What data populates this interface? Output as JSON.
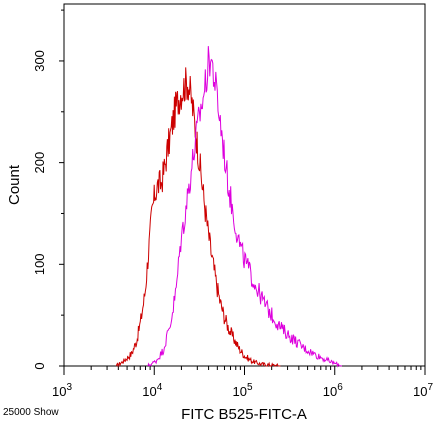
{
  "chart_data": {
    "type": "line",
    "title": "",
    "xlabel": "FITC B525-FITC-A",
    "ylabel": "Count",
    "x_scale": "log",
    "xlim": [
      1000,
      10000000
    ],
    "ylim": [
      0,
      356
    ],
    "x_ticks": [
      {
        "value": 1000,
        "base": "10",
        "exp": "3"
      },
      {
        "value": 10000,
        "base": "10",
        "exp": "4"
      },
      {
        "value": 100000,
        "base": "10",
        "exp": "5"
      },
      {
        "value": 1000000,
        "base": "10",
        "exp": "6"
      },
      {
        "value": 10000000,
        "base": "10",
        "exp": "7"
      }
    ],
    "y_ticks": [
      {
        "value": 0,
        "label": "0"
      },
      {
        "value": 100,
        "label": "100"
      },
      {
        "value": 200,
        "label": "200"
      },
      {
        "value": 300,
        "label": "300"
      }
    ],
    "grid": false,
    "legend": "none",
    "corner_note": "25000 Show",
    "series": [
      {
        "color": "#cc0000",
        "x": [
          3800,
          4600,
          5600,
          6400,
          7100,
          7900,
          8600,
          9400,
          10200,
          11000,
          12000,
          13000,
          14000,
          15200,
          16400,
          17800,
          19500,
          21500,
          23500,
          25500,
          27500,
          30000,
          33000,
          36000,
          39500,
          43000,
          48000,
          53000,
          59000,
          66000,
          75000,
          86000,
          100000,
          120000,
          150000,
          190000,
          250000
        ],
        "y": [
          0,
          5,
          12,
          25,
          45,
          72,
          110,
          150,
          170,
          178,
          180,
          195,
          212,
          228,
          245,
          258,
          268,
          275,
          280,
          265,
          245,
          218,
          188,
          160,
          132,
          110,
          85,
          65,
          50,
          38,
          28,
          18,
          10,
          5,
          2,
          1,
          0
        ]
      },
      {
        "color": "#dd00dd",
        "x": [
          8500,
          10500,
          12500,
          15000,
          17500,
          19500,
          22000,
          24500,
          27000,
          29500,
          32000,
          34500,
          37000,
          39500,
          42000,
          45000,
          49000,
          53000,
          58000,
          63000,
          69000,
          76000,
          84000,
          93000,
          105000,
          120000,
          140000,
          165000,
          200000,
          250000,
          330000,
          450000,
          650000,
          900000,
          1200000
        ],
        "y": [
          0,
          5,
          15,
          40,
          75,
          120,
          150,
          180,
          205,
          228,
          248,
          262,
          278,
          295,
          305,
          290,
          268,
          245,
          218,
          192,
          168,
          148,
          128,
          112,
          100,
          88,
          75,
          62,
          50,
          38,
          28,
          18,
          10,
          4,
          0
        ]
      }
    ]
  }
}
